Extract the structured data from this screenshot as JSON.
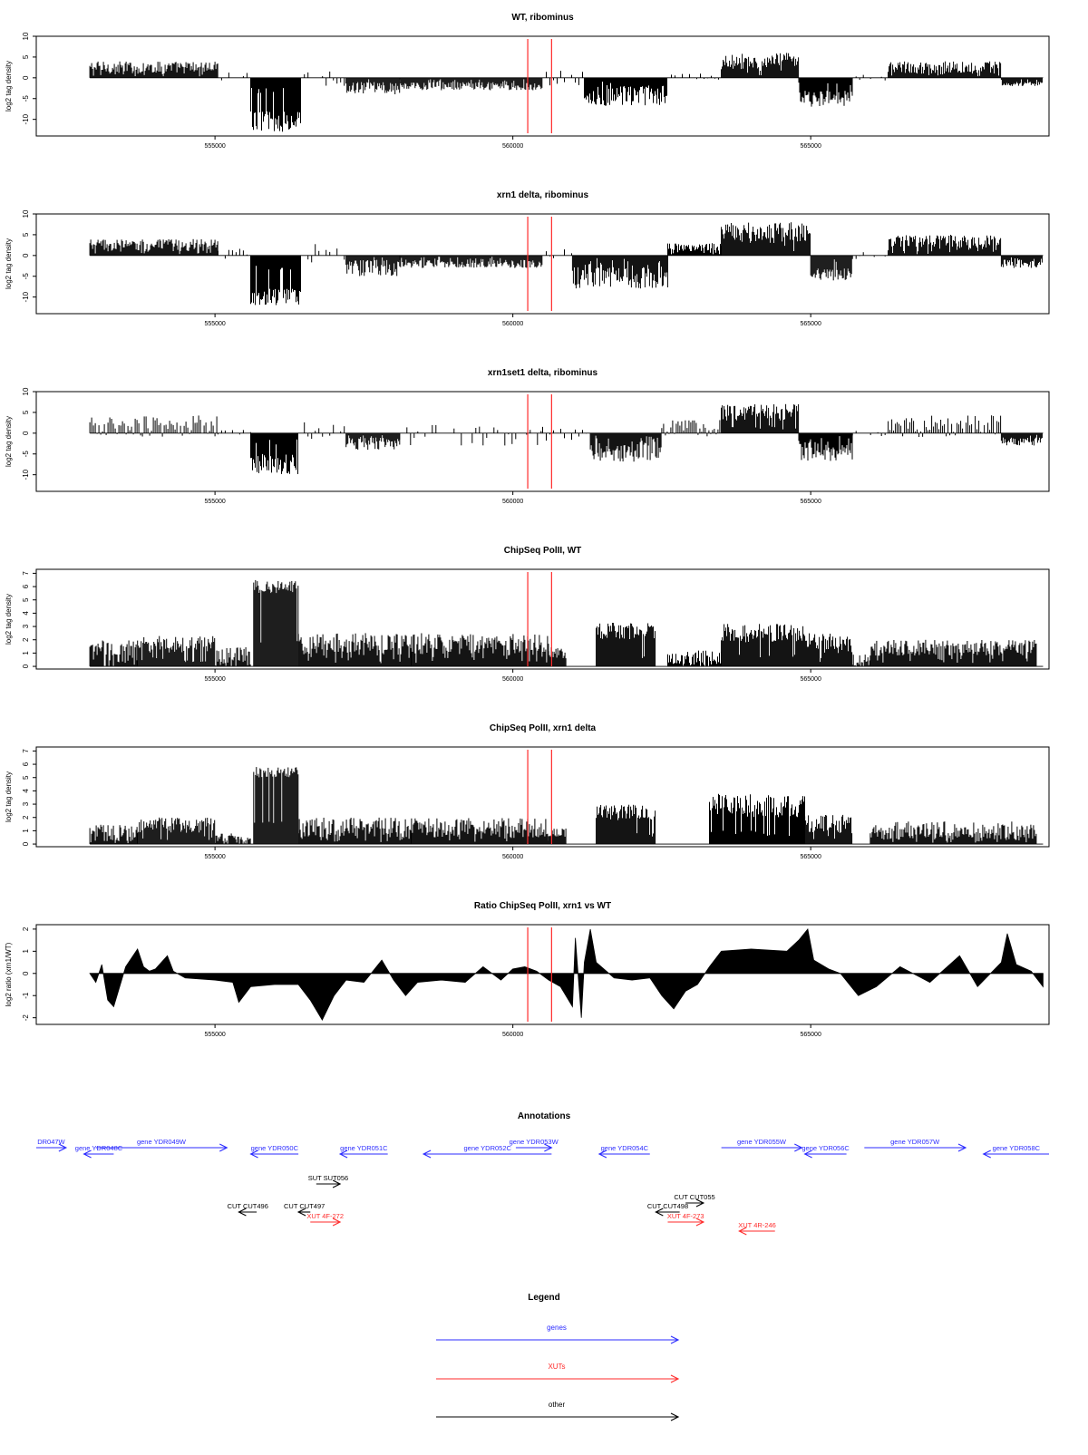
{
  "panels": [
    {
      "id": "wt-ribominus",
      "title": "WT, ribominus",
      "ylabel": "log2 tag density",
      "yticks": [
        10,
        5,
        0,
        -5,
        -10
      ],
      "ylim": [
        -14,
        10
      ],
      "xticks": [
        555000,
        560000,
        565000
      ],
      "xlim": [
        552000,
        569000
      ],
      "type": "bar",
      "segments": [
        {
          "x0": 552900,
          "x1": 555050,
          "kind": "pos",
          "lo": 1,
          "hi": 4
        },
        {
          "x0": 555050,
          "x1": 555550,
          "kind": "sparse",
          "lo": -1,
          "hi": 2
        },
        {
          "x0": 555600,
          "x1": 556450,
          "kind": "neg",
          "lo": -13,
          "hi": -8
        },
        {
          "x0": 556500,
          "x1": 557200,
          "kind": "sparse",
          "lo": -2,
          "hi": 2
        },
        {
          "x0": 557200,
          "x1": 558100,
          "kind": "neg",
          "lo": -4,
          "hi": -1
        },
        {
          "x0": 558100,
          "x1": 560500,
          "kind": "neg",
          "lo": -3,
          "hi": -1
        },
        {
          "x0": 560500,
          "x1": 561200,
          "kind": "sparse",
          "lo": -2,
          "hi": 2
        },
        {
          "x0": 561200,
          "x1": 562600,
          "kind": "neg",
          "lo": -7,
          "hi": -2
        },
        {
          "x0": 562600,
          "x1": 563500,
          "kind": "sparse",
          "lo": -1,
          "hi": 1
        },
        {
          "x0": 563500,
          "x1": 564800,
          "kind": "pos",
          "lo": 2,
          "hi": 6
        },
        {
          "x0": 564800,
          "x1": 565700,
          "kind": "neg",
          "lo": -7,
          "hi": -3
        },
        {
          "x0": 565700,
          "x1": 566300,
          "kind": "sparse",
          "lo": -1,
          "hi": 1
        },
        {
          "x0": 566300,
          "x1": 568200,
          "kind": "pos",
          "lo": 1,
          "hi": 4
        },
        {
          "x0": 568200,
          "x1": 568900,
          "kind": "neg",
          "lo": -2,
          "hi": -1
        }
      ]
    },
    {
      "id": "xrn1-ribominus",
      "title": "xrn1 delta, ribominus",
      "ylabel": "log2 tag density",
      "yticks": [
        10,
        5,
        0,
        -5,
        -10
      ],
      "ylim": [
        -14,
        10
      ],
      "xticks": [
        555000,
        560000,
        565000
      ],
      "xlim": [
        552000,
        569000
      ],
      "type": "bar",
      "segments": [
        {
          "x0": 552900,
          "x1": 555050,
          "kind": "pos",
          "lo": 1,
          "hi": 4
        },
        {
          "x0": 555050,
          "x1": 555550,
          "kind": "sparse",
          "lo": -1,
          "hi": 2
        },
        {
          "x0": 555600,
          "x1": 556450,
          "kind": "neg",
          "lo": -12,
          "hi": -8
        },
        {
          "x0": 556500,
          "x1": 557200,
          "kind": "sparse",
          "lo": -2,
          "hi": 3
        },
        {
          "x0": 557200,
          "x1": 558100,
          "kind": "neg",
          "lo": -5,
          "hi": -1
        },
        {
          "x0": 558100,
          "x1": 560500,
          "kind": "neg",
          "lo": -3,
          "hi": -1
        },
        {
          "x0": 560500,
          "x1": 561000,
          "kind": "sparse",
          "lo": -2,
          "hi": 2
        },
        {
          "x0": 561000,
          "x1": 562600,
          "kind": "neg",
          "lo": -8,
          "hi": -2
        },
        {
          "x0": 562600,
          "x1": 563500,
          "kind": "pos",
          "lo": 1,
          "hi": 3
        },
        {
          "x0": 563500,
          "x1": 565000,
          "kind": "pos",
          "lo": 3,
          "hi": 8
        },
        {
          "x0": 565000,
          "x1": 565700,
          "kind": "neg",
          "lo": -6,
          "hi": -3
        },
        {
          "x0": 565700,
          "x1": 566300,
          "kind": "sparse",
          "lo": -1,
          "hi": 1
        },
        {
          "x0": 566300,
          "x1": 568200,
          "kind": "pos",
          "lo": 1,
          "hi": 5
        },
        {
          "x0": 568200,
          "x1": 568900,
          "kind": "neg",
          "lo": -3,
          "hi": -1
        }
      ]
    },
    {
      "id": "xrn1set1-ribominus",
      "title": "xrn1set1 delta, ribominus",
      "ylabel": "log2 tag density",
      "yticks": [
        10,
        5,
        0,
        -5,
        -10
      ],
      "ylim": [
        -14,
        10
      ],
      "xticks": [
        555000,
        560000,
        565000
      ],
      "xlim": [
        552000,
        569000
      ],
      "type": "bar",
      "segments": [
        {
          "x0": 552900,
          "x1": 555050,
          "kind": "sparsepos",
          "lo": -1,
          "hi": 4
        },
        {
          "x0": 555050,
          "x1": 555600,
          "kind": "sparse",
          "lo": -1,
          "hi": 1
        },
        {
          "x0": 555600,
          "x1": 556400,
          "kind": "neg",
          "lo": -10,
          "hi": -5
        },
        {
          "x0": 556500,
          "x1": 557200,
          "kind": "sparse",
          "lo": -2,
          "hi": 3
        },
        {
          "x0": 557200,
          "x1": 558100,
          "kind": "neg",
          "lo": -4,
          "hi": -1
        },
        {
          "x0": 558100,
          "x1": 560500,
          "kind": "sparse",
          "lo": -3,
          "hi": 2
        },
        {
          "x0": 560500,
          "x1": 561300,
          "kind": "sparse",
          "lo": -2,
          "hi": 2
        },
        {
          "x0": 561300,
          "x1": 562500,
          "kind": "neg",
          "lo": -7,
          "hi": -2
        },
        {
          "x0": 562500,
          "x1": 563500,
          "kind": "sparsepos",
          "lo": -1,
          "hi": 3
        },
        {
          "x0": 563500,
          "x1": 564800,
          "kind": "pos",
          "lo": 3,
          "hi": 7
        },
        {
          "x0": 564800,
          "x1": 565700,
          "kind": "neg",
          "lo": -7,
          "hi": -2
        },
        {
          "x0": 565700,
          "x1": 566300,
          "kind": "sparse",
          "lo": -1,
          "hi": 1
        },
        {
          "x0": 566300,
          "x1": 568200,
          "kind": "sparsepos",
          "lo": -1,
          "hi": 4
        },
        {
          "x0": 568200,
          "x1": 568900,
          "kind": "neg",
          "lo": -3,
          "hi": -1
        }
      ]
    },
    {
      "id": "chipseq-wt",
      "title": "ChipSeq PolII, WT",
      "ylabel": "log2 tag density",
      "yticks": [
        7,
        6,
        5,
        4,
        3,
        2,
        1,
        0
      ],
      "ylim": [
        -0.2,
        7.3
      ],
      "xticks": [
        555000,
        560000,
        565000
      ],
      "xlim": [
        552000,
        569000
      ],
      "type": "bar",
      "segments": [
        {
          "x0": 552900,
          "x1": 553700,
          "kind": "pos",
          "lo": 0,
          "hi": 2
        },
        {
          "x0": 553700,
          "x1": 555000,
          "kind": "pos",
          "lo": 1,
          "hi": 2.3
        },
        {
          "x0": 555000,
          "x1": 555600,
          "kind": "pos",
          "lo": 0,
          "hi": 1.5
        },
        {
          "x0": 555650,
          "x1": 556400,
          "kind": "pos",
          "lo": 5.5,
          "hi": 6.5
        },
        {
          "x0": 556400,
          "x1": 558300,
          "kind": "pos",
          "lo": 0.8,
          "hi": 2.5
        },
        {
          "x0": 558300,
          "x1": 560600,
          "kind": "pos",
          "lo": 0.8,
          "hi": 2.5
        },
        {
          "x0": 560600,
          "x1": 560900,
          "kind": "pos",
          "lo": 0.5,
          "hi": 1.5
        },
        {
          "x0": 561400,
          "x1": 562400,
          "kind": "pos",
          "lo": 2,
          "hi": 3.3
        },
        {
          "x0": 562600,
          "x1": 563500,
          "kind": "pos",
          "lo": 0,
          "hi": 1.2
        },
        {
          "x0": 563500,
          "x1": 564900,
          "kind": "pos",
          "lo": 1.8,
          "hi": 3.2
        },
        {
          "x0": 564900,
          "x1": 565700,
          "kind": "pos",
          "lo": 1,
          "hi": 2.5
        },
        {
          "x0": 565700,
          "x1": 566000,
          "kind": "pos",
          "lo": 0,
          "hi": 1
        },
        {
          "x0": 566000,
          "x1": 568800,
          "kind": "pos",
          "lo": 0.8,
          "hi": 2
        }
      ]
    },
    {
      "id": "chipseq-xrn1",
      "title": "ChipSeq PolII, xrn1 delta",
      "ylabel": "log2 tag density",
      "yticks": [
        7,
        6,
        5,
        4,
        3,
        2,
        1,
        0
      ],
      "ylim": [
        -0.2,
        7.3
      ],
      "xticks": [
        555000,
        560000,
        565000
      ],
      "xlim": [
        552000,
        569000
      ],
      "type": "bar",
      "segments": [
        {
          "x0": 552900,
          "x1": 553700,
          "kind": "pos",
          "lo": 0.2,
          "hi": 1.5
        },
        {
          "x0": 553700,
          "x1": 555000,
          "kind": "pos",
          "lo": 0.8,
          "hi": 2
        },
        {
          "x0": 555000,
          "x1": 555600,
          "kind": "pos",
          "lo": 0,
          "hi": 0.8
        },
        {
          "x0": 555650,
          "x1": 556400,
          "kind": "pos",
          "lo": 5,
          "hi": 5.8
        },
        {
          "x0": 556400,
          "x1": 558300,
          "kind": "pos",
          "lo": 0.5,
          "hi": 2
        },
        {
          "x0": 558300,
          "x1": 560600,
          "kind": "pos",
          "lo": 0.5,
          "hi": 2
        },
        {
          "x0": 560600,
          "x1": 560900,
          "kind": "pos",
          "lo": 0.5,
          "hi": 1.2
        },
        {
          "x0": 561400,
          "x1": 562400,
          "kind": "pos",
          "lo": 1.8,
          "hi": 3
        },
        {
          "x0": 563300,
          "x1": 564900,
          "kind": "pos",
          "lo": 2,
          "hi": 3.8
        },
        {
          "x0": 564900,
          "x1": 565700,
          "kind": "pos",
          "lo": 0.8,
          "hi": 2.2
        },
        {
          "x0": 566000,
          "x1": 568800,
          "kind": "pos",
          "lo": 0.3,
          "hi": 1.7
        }
      ]
    },
    {
      "id": "ratio-chipseq",
      "title": "Ratio ChipSeq PolII, xrn1 vs WT",
      "ylabel": "log2 ratio (xrn1/WT)",
      "yticks": [
        2,
        1,
        0,
        -1,
        -2
      ],
      "ylim": [
        -2.3,
        2.2
      ],
      "xticks": [
        555000,
        560000,
        565000
      ],
      "xlim": [
        552000,
        569000
      ],
      "type": "area",
      "points": [
        [
          552900,
          0
        ],
        [
          553000,
          -0.4
        ],
        [
          553100,
          0.4
        ],
        [
          553200,
          -1.2
        ],
        [
          553300,
          -1.5
        ],
        [
          553400,
          -0.6
        ],
        [
          553500,
          0.3
        ],
        [
          553700,
          1.1
        ],
        [
          553800,
          0.3
        ],
        [
          553900,
          0.1
        ],
        [
          554000,
          0.2
        ],
        [
          554200,
          0.8
        ],
        [
          554300,
          0.1
        ],
        [
          554500,
          -0.2
        ],
        [
          555000,
          -0.3
        ],
        [
          555300,
          -0.4
        ],
        [
          555400,
          -1.3
        ],
        [
          555600,
          -0.6
        ],
        [
          556000,
          -0.5
        ],
        [
          556400,
          -0.5
        ],
        [
          556600,
          -1.2
        ],
        [
          556800,
          -2.1
        ],
        [
          557000,
          -1.0
        ],
        [
          557200,
          -0.3
        ],
        [
          557500,
          -0.4
        ],
        [
          557800,
          0.6
        ],
        [
          558000,
          -0.3
        ],
        [
          558200,
          -1.0
        ],
        [
          558400,
          -0.4
        ],
        [
          558800,
          -0.3
        ],
        [
          559200,
          -0.4
        ],
        [
          559500,
          0.3
        ],
        [
          559800,
          -0.3
        ],
        [
          560000,
          0.2
        ],
        [
          560200,
          0.3
        ],
        [
          560400,
          0.1
        ],
        [
          560600,
          -0.3
        ],
        [
          560800,
          -0.6
        ],
        [
          561000,
          -1.5
        ],
        [
          561050,
          1.6
        ],
        [
          561150,
          -2.0
        ],
        [
          561200,
          0.5
        ],
        [
          561300,
          2.0
        ],
        [
          561400,
          0.5
        ],
        [
          561700,
          -0.2
        ],
        [
          562000,
          -0.3
        ],
        [
          562300,
          -0.2
        ],
        [
          562500,
          -1.0
        ],
        [
          562700,
          -1.6
        ],
        [
          562900,
          -0.8
        ],
        [
          563100,
          -0.5
        ],
        [
          563300,
          0.3
        ],
        [
          563500,
          1.0
        ],
        [
          564000,
          1.1
        ],
        [
          564600,
          1.0
        ],
        [
          564800,
          1.5
        ],
        [
          564950,
          2.0
        ],
        [
          565050,
          0.6
        ],
        [
          565300,
          0.2
        ],
        [
          565500,
          0.0
        ],
        [
          565800,
          -1.0
        ],
        [
          566100,
          -0.6
        ],
        [
          566500,
          0.3
        ],
        [
          567000,
          -0.4
        ],
        [
          567500,
          0.8
        ],
        [
          567800,
          -0.6
        ],
        [
          568200,
          0.5
        ],
        [
          568300,
          1.8
        ],
        [
          568450,
          0.4
        ],
        [
          568700,
          0.1
        ],
        [
          568900,
          -0.6
        ]
      ]
    }
  ],
  "markers": [
    560250,
    560650
  ],
  "colors": {
    "marker": "#ff2a2a",
    "gene": "#2b2bff",
    "xut": "#ff2a2a",
    "other": "#000000",
    "data": "#000000"
  },
  "annotations": {
    "title": "Annotations",
    "items": [
      {
        "label": "DR047W",
        "cat": "gene",
        "dir": "right",
        "x0": 552000,
        "x1": 552500,
        "row": 0
      },
      {
        "label": "gene YDR048C",
        "cat": "gene",
        "dir": "left",
        "x0": 552800,
        "x1": 553300,
        "row": 1
      },
      {
        "label": "gene YDR049W",
        "cat": "gene",
        "dir": "right",
        "x0": 553000,
        "x1": 555200,
        "row": 0
      },
      {
        "label": "gene YDR050C",
        "cat": "gene",
        "dir": "left",
        "x0": 555600,
        "x1": 556400,
        "row": 1
      },
      {
        "label": "gene YDR051C",
        "cat": "gene",
        "dir": "left",
        "x0": 557100,
        "x1": 557900,
        "row": 1
      },
      {
        "label": "gene YDR052C",
        "cat": "gene",
        "dir": "left",
        "x0": 558500,
        "x1": 560650,
        "row": 1
      },
      {
        "label": "gene YDR053W",
        "cat": "gene",
        "dir": "right",
        "x0": 560050,
        "x1": 560650,
        "row": 0
      },
      {
        "label": "gene YDR054C",
        "cat": "gene",
        "dir": "left",
        "x0": 561450,
        "x1": 562300,
        "row": 1
      },
      {
        "label": "gene YDR055W",
        "cat": "gene",
        "dir": "right",
        "x0": 563500,
        "x1": 564850,
        "row": 0
      },
      {
        "label": "gene YDR056C",
        "cat": "gene",
        "dir": "left",
        "x0": 564900,
        "x1": 565600,
        "row": 1
      },
      {
        "label": "gene YDR057W",
        "cat": "gene",
        "dir": "right",
        "x0": 565900,
        "x1": 567600,
        "row": 0
      },
      {
        "label": "gene YDR058C",
        "cat": "gene",
        "dir": "left",
        "x0": 567900,
        "x1": 569000,
        "row": 1
      },
      {
        "label": "SUT SUT056",
        "cat": "other",
        "dir": "right",
        "x0": 556700,
        "x1": 557100,
        "row": 2
      },
      {
        "label": "CUT CUT496",
        "cat": "other",
        "dir": "left",
        "x0": 555400,
        "x1": 555700,
        "row": 3
      },
      {
        "label": "CUT CUT497",
        "cat": "other",
        "dir": "left",
        "x0": 556400,
        "x1": 556600,
        "row": 3
      },
      {
        "label": "XUT 4F-272",
        "cat": "xut",
        "dir": "right",
        "x0": 556600,
        "x1": 557100,
        "row": 4
      },
      {
        "label": "CUT CUT055",
        "cat": "other",
        "dir": "right",
        "x0": 562900,
        "x1": 563200,
        "row": 5
      },
      {
        "label": "CUT CUT498",
        "cat": "other",
        "dir": "left",
        "x0": 562400,
        "x1": 562800,
        "row": 3
      },
      {
        "label": "XUT 4F-273",
        "cat": "xut",
        "dir": "right",
        "x0": 562600,
        "x1": 563200,
        "row": 4
      },
      {
        "label": "XUT 4R-246",
        "cat": "xut",
        "dir": "left",
        "x0": 563800,
        "x1": 564400,
        "row": 6
      }
    ]
  },
  "legend": {
    "title": "Legend",
    "items": [
      {
        "label": "genes",
        "cat": "gene"
      },
      {
        "label": "XUTs",
        "cat": "xut"
      },
      {
        "label": "other",
        "cat": "other"
      }
    ]
  }
}
